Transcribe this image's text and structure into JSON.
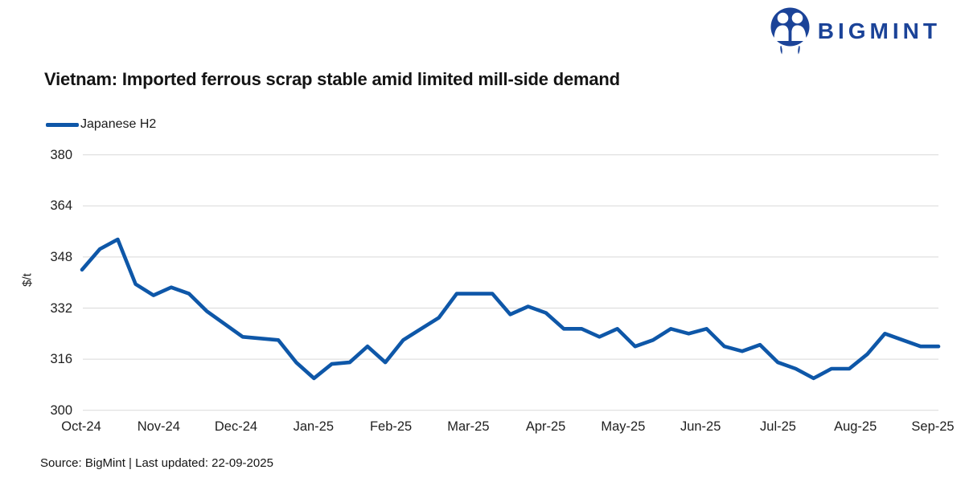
{
  "header": {
    "brand": "BIGMINT"
  },
  "chart": {
    "title": "Vietnam: Imported ferrous scrap stable amid limited mill-side demand",
    "legend_label": "Japanese H2",
    "y_axis_title": "$/t"
  },
  "footer": {
    "source": "Source: BigMint | Last updated: 22-09-2025"
  },
  "colors": {
    "line": "#0e57a8",
    "brand": "#1b4398",
    "grid": "#d9d9d9"
  },
  "chart_data": {
    "type": "line",
    "title": "Vietnam: Imported ferrous scrap stable amid limited mill-side demand",
    "xlabel": "",
    "ylabel": "$/t",
    "ylim": [
      300,
      380
    ],
    "yticks": [
      300,
      316,
      332,
      348,
      364,
      380
    ],
    "x_tick_labels": [
      "Oct-24",
      "Nov-24",
      "Dec-24",
      "Jan-25",
      "Feb-25",
      "Mar-25",
      "Apr-25",
      "May-25",
      "Jun-25",
      "Jul-25",
      "Aug-25",
      "Sep-25"
    ],
    "x_frequency": "weekly",
    "grid": "horizontal",
    "legend_position": "top-left",
    "series": [
      {
        "name": "Japanese H2",
        "unit": "$/t",
        "values": [
          344,
          350.5,
          353.5,
          339.5,
          336,
          338.5,
          336.5,
          331,
          327,
          323,
          322.5,
          322,
          315,
          310,
          314.5,
          315,
          320,
          315,
          322,
          325.5,
          329,
          336.5,
          336.5,
          336.5,
          330,
          332.5,
          330.5,
          325.5,
          325.5,
          323,
          325.5,
          320,
          322,
          325.5,
          324,
          325.5,
          320,
          318.5,
          320.5,
          315,
          313,
          310,
          313,
          313,
          317.5,
          324,
          322,
          320,
          320
        ]
      }
    ]
  }
}
